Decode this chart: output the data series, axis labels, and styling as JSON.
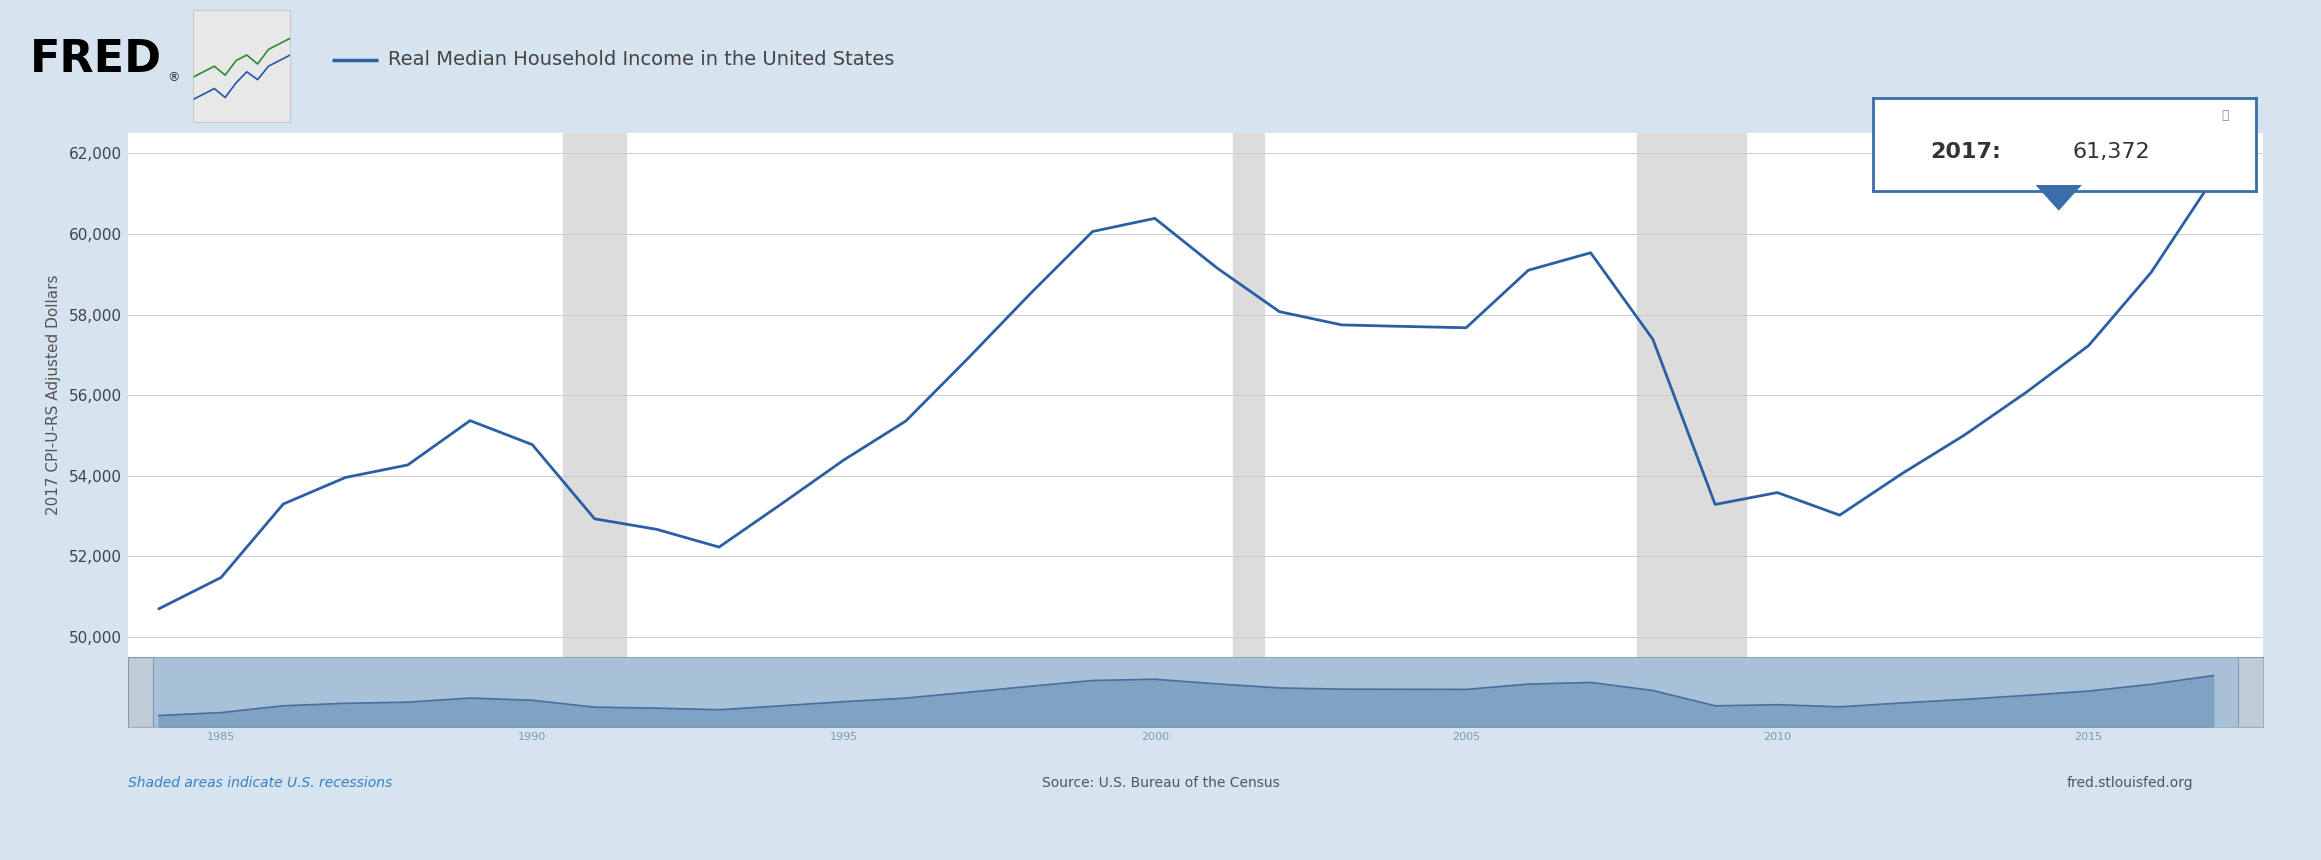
{
  "title": "Real Median Household Income in the United States",
  "ylabel": "2017 CPI-U-RS Adjusted Dollars",
  "source_text": "Source: U.S. Bureau of the Census",
  "fred_text": "fred.stlouisfed.org",
  "recession_text": "Shaded areas indicate U.S. recessions",
  "tooltip_text": "2017: 61,372",
  "line_color": "#2B5FA5",
  "background_color": "#D6E4F0",
  "plot_bg_color": "#FFFFFF",
  "recession_color": "#DCDCDC",
  "nav_bg_color": "#A8C0D8",
  "nav_fill_color": "#7A9EC0",
  "nav_line_color": "#4A70A0",
  "tooltip_border_color": "#3A6EA8",
  "years": [
    1984,
    1985,
    1986,
    1987,
    1988,
    1989,
    1990,
    1991,
    1992,
    1993,
    1994,
    1995,
    1996,
    1997,
    1998,
    1999,
    2000,
    2001,
    2002,
    2003,
    2004,
    2005,
    2006,
    2007,
    2008,
    2009,
    2010,
    2011,
    2012,
    2013,
    2014,
    2015,
    2016,
    2017
  ],
  "values": [
    50693,
    51471,
    53296,
    53955,
    54266,
    55366,
    54770,
    52929,
    52666,
    52226,
    53296,
    54385,
    55357,
    56915,
    58519,
    60062,
    60388,
    59154,
    58072,
    57743,
    57705,
    57672,
    59100,
    59534,
    57384,
    53285,
    53580,
    53019,
    54049,
    55003,
    56072,
    57230,
    59039,
    61372
  ],
  "recessions": [
    {
      "start": 1990.5,
      "end": 1991.5
    },
    {
      "start": 2001.25,
      "end": 2001.75
    },
    {
      "start": 2007.75,
      "end": 2009.5
    }
  ],
  "ylim": [
    49500,
    62500
  ],
  "yticks": [
    50000,
    52000,
    54000,
    56000,
    58000,
    60000,
    62000
  ],
  "xlim_start": 1983.5,
  "xlim_end": 2017.8,
  "line_width": 2.0
}
